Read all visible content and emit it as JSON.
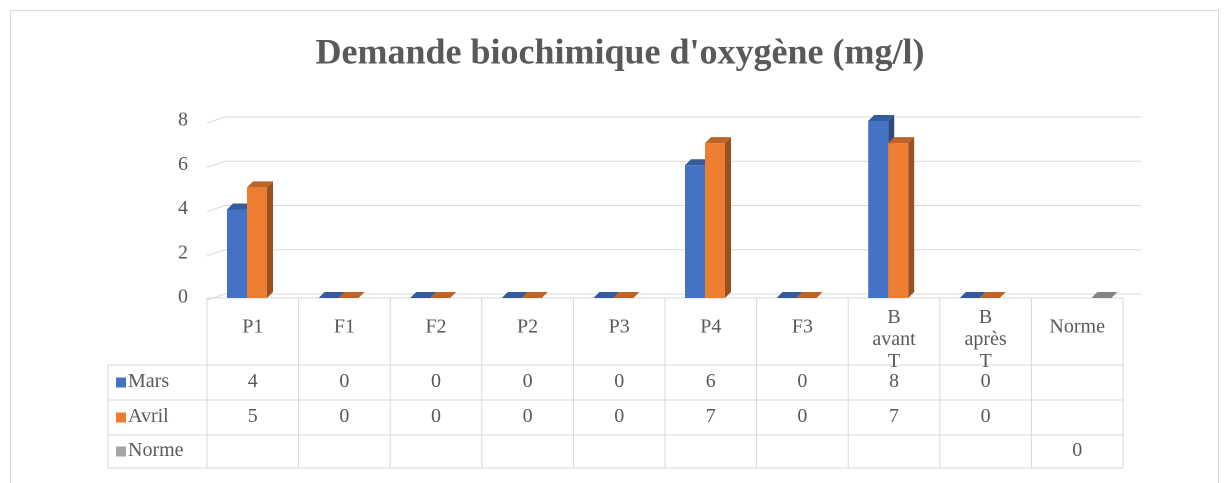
{
  "chart_data": {
    "type": "bar3d",
    "title": "Demande biochimique d'oxygène (mg/l)",
    "categories": [
      "P1",
      "F1",
      "F2",
      "P2",
      "P3",
      "P4",
      "F3",
      "B avant T",
      "B après T",
      "Norme"
    ],
    "series": [
      {
        "name": "Mars",
        "color": "#4472c4",
        "values": [
          4,
          0,
          0,
          0,
          0,
          6,
          0,
          8,
          0,
          null
        ]
      },
      {
        "name": "Avril",
        "color": "#ed7d31",
        "values": [
          5,
          0,
          0,
          0,
          0,
          7,
          0,
          7,
          0,
          null
        ]
      },
      {
        "name": "Norme",
        "color": "#a5a5a5",
        "values": [
          null,
          null,
          null,
          null,
          null,
          null,
          null,
          null,
          null,
          0
        ]
      }
    ],
    "ylim": [
      0,
      8
    ],
    "yticks": [
      0,
      2,
      4,
      6,
      8
    ],
    "grid": true,
    "data_table": true
  }
}
